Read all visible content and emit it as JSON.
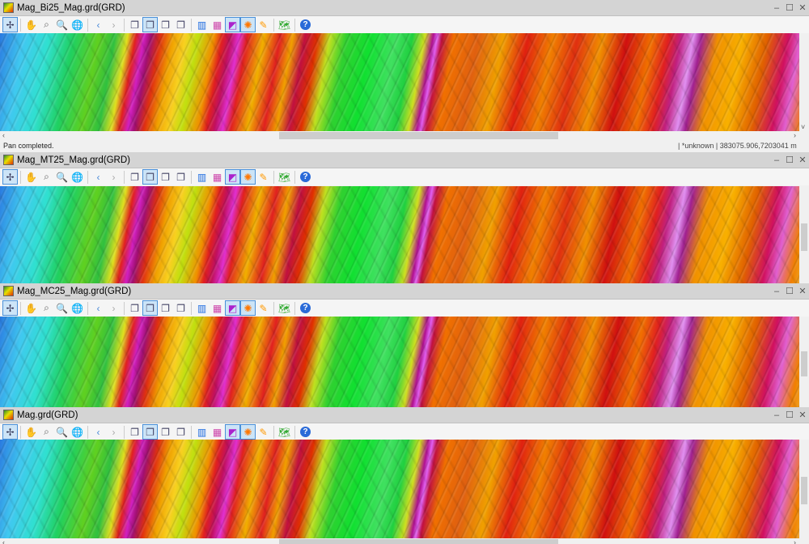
{
  "windows": [
    {
      "title": "Mag_Bi25_Mag.grd(GRD)",
      "status": "Pan completed.",
      "projection": "*unknown",
      "coords": "383075.906,7203041 m"
    },
    {
      "title": "Mag_MT25_Mag.grd(GRD)"
    },
    {
      "title": "Mag_MC25_Mag.grd(GRD)"
    },
    {
      "title": "Mag.grd(GRD)"
    }
  ],
  "window_buttons": {
    "minimize": "–",
    "maximize": "☐",
    "close": "✕"
  },
  "toolbar": [
    {
      "name": "select-tool",
      "glyph": "✢",
      "active": true
    },
    {
      "sep": true
    },
    {
      "name": "pan-tool",
      "glyph": "✋"
    },
    {
      "name": "zoom-region-tool",
      "glyph": "⌕"
    },
    {
      "name": "zoom-tool",
      "glyph": "🔍"
    },
    {
      "name": "globe-tool",
      "glyph": "🌐"
    },
    {
      "sep": true
    },
    {
      "name": "back-button",
      "glyph": "‹"
    },
    {
      "name": "forward-button",
      "glyph": "›"
    },
    {
      "sep": true
    },
    {
      "name": "window-layout-1",
      "glyph": "❐"
    },
    {
      "name": "window-layout-2",
      "glyph": "❐",
      "active": true
    },
    {
      "name": "window-layout-3",
      "glyph": "❐"
    },
    {
      "name": "window-layout-4",
      "glyph": "❐"
    },
    {
      "sep": true
    },
    {
      "name": "color-bars-tool",
      "glyph": "▥"
    },
    {
      "name": "color-table-tool",
      "glyph": "▦"
    },
    {
      "name": "shaded-relief-tool",
      "glyph": "◩",
      "active": true
    },
    {
      "name": "sun-angle-tool",
      "glyph": "✺",
      "active": true
    },
    {
      "name": "brush-tool",
      "glyph": "✎"
    },
    {
      "sep": true
    },
    {
      "name": "map-export-tool",
      "glyph": "🗺"
    },
    {
      "sep": true
    },
    {
      "name": "help-button",
      "glyph": "?"
    }
  ],
  "scroll_arrows": {
    "left": "‹",
    "right": "›",
    "down": "˅"
  }
}
